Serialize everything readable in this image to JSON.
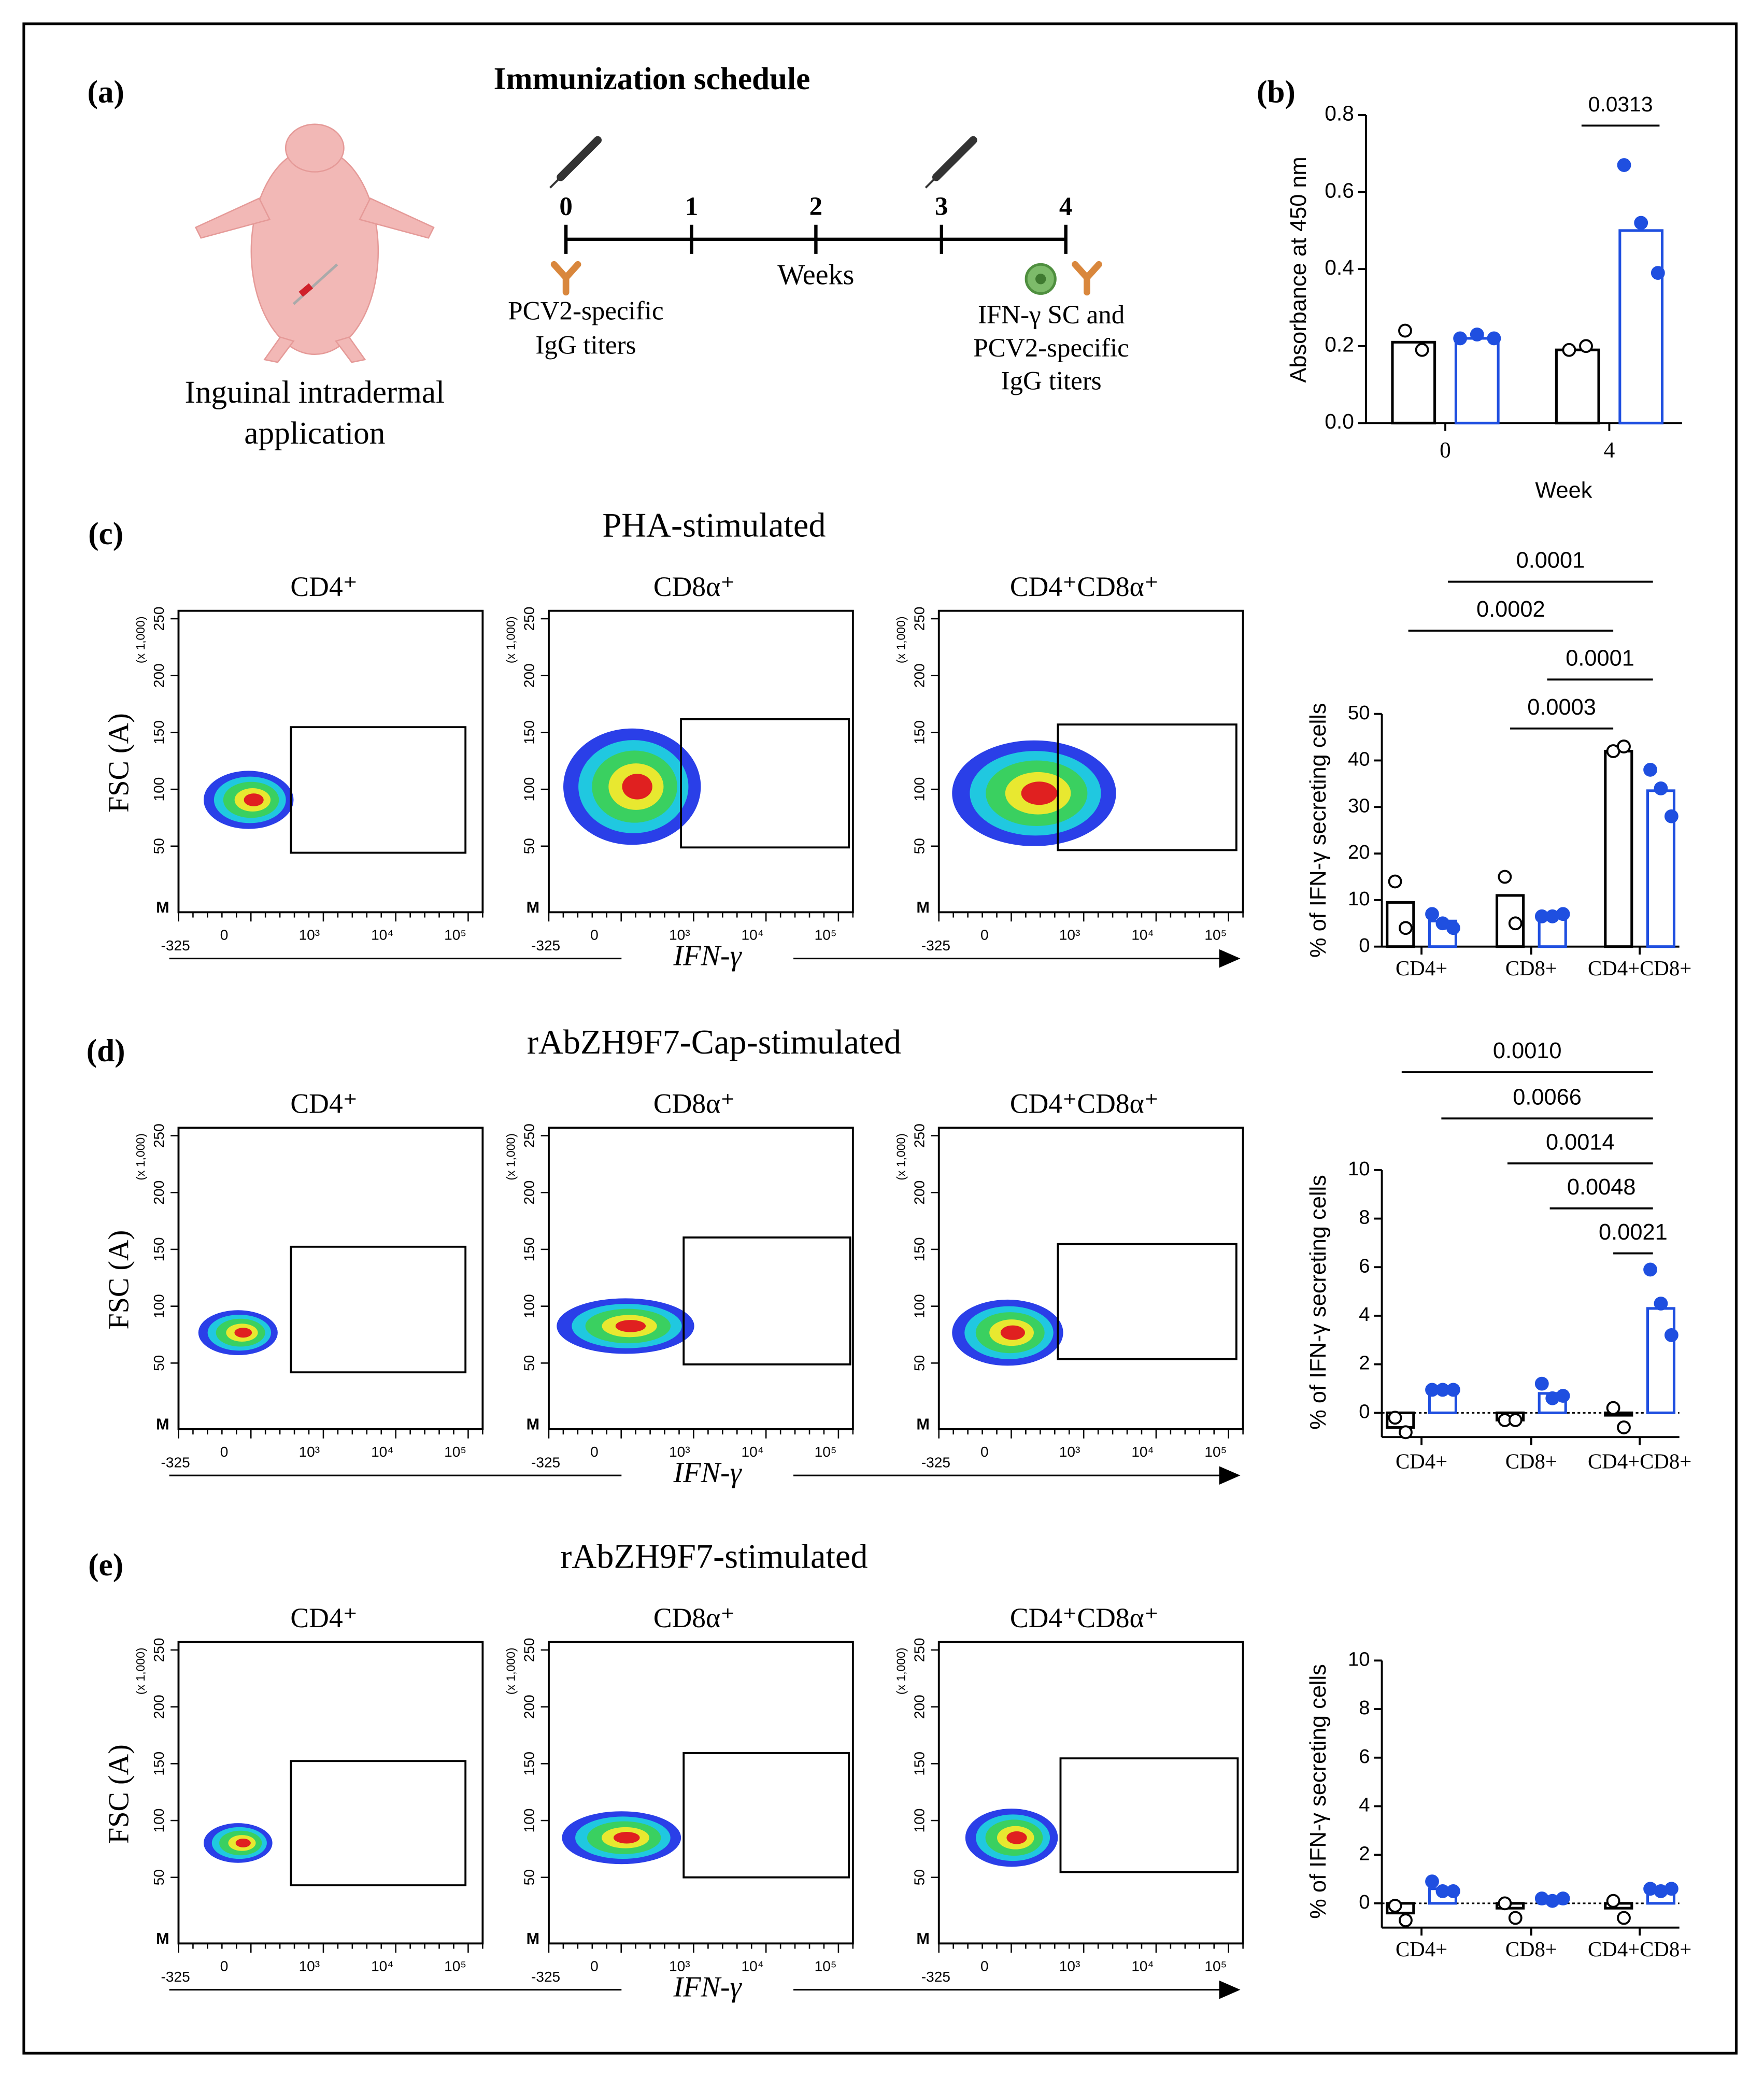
{
  "schedule": {
    "label": "(a)",
    "title": "Immunization schedule",
    "weeks": [
      "0",
      "1",
      "2",
      "3",
      "4"
    ],
    "axis_label": "Weeks",
    "left_label": [
      "PCV2-specific",
      "IgG titers"
    ],
    "right_label": [
      "IFN-γ SC and",
      "PCV2-specific",
      "IgG titers"
    ],
    "caption": [
      "Inguinal intradermal",
      "application"
    ]
  },
  "chart_data": [
    {
      "type": "bar",
      "label": "(b)",
      "ylabel": "Absorbance at 450 nm",
      "xlabel": "Week",
      "categories": [
        "0",
        "4"
      ],
      "ylim": [
        0,
        0.8
      ],
      "yticks": [
        {
          "value": 0,
          "label": "0.0"
        },
        {
          "value": 0.2,
          "label": "0.2"
        },
        {
          "value": 0.4,
          "label": "0.4"
        },
        {
          "value": 0.6,
          "label": "0.6"
        },
        {
          "value": 0.8,
          "label": "0.8"
        }
      ],
      "series": [
        {
          "color": "#000000",
          "values": [
            0.21,
            0.19
          ],
          "points": [
            [
              0.24,
              0.19
            ],
            [
              0.19,
              0.2
            ]
          ]
        },
        {
          "color": "#1f4fe0",
          "values": [
            0.22,
            0.5
          ],
          "points": [
            [
              0.22,
              0.23,
              0.22
            ],
            [
              0.67,
              0.52,
              0.39
            ]
          ]
        }
      ],
      "annotations": [
        "0.0313"
      ],
      "zero_line": false
    },
    {
      "type": "bar",
      "ylabel": "% of IFN-γ secreting cells",
      "categories": [
        "CD4+",
        "CD8+",
        "CD4+CD8+"
      ],
      "ylim": [
        0,
        50
      ],
      "yticks": [
        0,
        10,
        20,
        30,
        40,
        50
      ],
      "series": [
        {
          "color": "#000000",
          "values": [
            9.5,
            11,
            42
          ],
          "points": [
            [
              14,
              4
            ],
            [
              15,
              5
            ],
            [
              42,
              43
            ]
          ]
        },
        {
          "color": "#1f4fe0",
          "values": [
            5.5,
            6.5,
            33.5
          ],
          "points": [
            [
              7,
              5,
              4
            ],
            [
              6.5,
              6.5,
              7
            ],
            [
              38,
              34,
              28
            ]
          ]
        }
      ],
      "annotations": [
        "0.0001",
        "0.0002",
        "0.0001",
        "0.0003"
      ],
      "zero_line": false
    },
    {
      "type": "bar",
      "ylabel": "% of IFN-γ secreting cells",
      "categories": [
        "CD4+",
        "CD8+",
        "CD4+CD8+"
      ],
      "ylim": [
        -1,
        10
      ],
      "yticks": [
        0,
        2,
        4,
        6,
        8,
        10
      ],
      "series": [
        {
          "color": "#000000",
          "values": [
            -0.6,
            -0.3,
            -0.1
          ],
          "points": [
            [
              -0.2,
              -0.8
            ],
            [
              -0.3,
              -0.3
            ],
            [
              0.2,
              -0.6
            ]
          ]
        },
        {
          "color": "#1f4fe0",
          "values": [
            0.9,
            0.8,
            4.3
          ],
          "points": [
            [
              0.95,
              0.95,
              0.95
            ],
            [
              1.2,
              0.6,
              0.7
            ],
            [
              5.9,
              4.5,
              3.2
            ]
          ]
        }
      ],
      "annotations": [
        "0.0010",
        "0.0066",
        "0.0014",
        "0.0048",
        "0.0021"
      ],
      "zero_line": true
    },
    {
      "type": "bar",
      "ylabel": "% of IFN-γ secreting cells",
      "categories": [
        "CD4+",
        "CD8+",
        "CD4+CD8+"
      ],
      "ylim": [
        -1,
        10
      ],
      "yticks": [
        0,
        2,
        4,
        6,
        8,
        10
      ],
      "series": [
        {
          "color": "#000000",
          "values": [
            -0.4,
            -0.2,
            -0.2
          ],
          "points": [
            [
              -0.1,
              -0.7
            ],
            [
              0,
              -0.6
            ],
            [
              0.1,
              -0.6
            ]
          ]
        },
        {
          "color": "#1f4fe0",
          "values": [
            0.6,
            0.15,
            0.45
          ],
          "points": [
            [
              0.9,
              0.5,
              0.5
            ],
            [
              0.2,
              0.1,
              0.2
            ],
            [
              0.6,
              0.5,
              0.6
            ]
          ]
        }
      ],
      "annotations": [],
      "zero_line": true
    }
  ],
  "flow": [
    {
      "label": "(c)",
      "title": "PHA-stimulated",
      "plots": [
        "CD4⁺",
        "CD8α⁺",
        "CD4⁺CD8α⁺"
      ],
      "y_label": "FSC (A)",
      "x_label": "IFN-γ",
      "y_unit": "(x 1,000)",
      "yticks": [
        50,
        100,
        150,
        200,
        250
      ],
      "xticks": [
        "-325",
        "0",
        "10³",
        "10⁴",
        "10⁵"
      ],
      "corner_mark": "M"
    },
    {
      "label": "(d)",
      "title": "rAbZH9F7-Cap-stimulated",
      "plots": [
        "CD4⁺",
        "CD8α⁺",
        "CD4⁺CD8α⁺"
      ],
      "y_label": "FSC (A)",
      "x_label": "IFN-γ",
      "y_unit": "(x 1,000)",
      "yticks": [
        50,
        100,
        150,
        200,
        250
      ],
      "xticks": [
        "-325",
        "0",
        "10³",
        "10⁴",
        "10⁵"
      ],
      "corner_mark": "M"
    },
    {
      "label": "(e)",
      "title": "rAbZH9F7-stimulated",
      "plots": [
        "CD4⁺",
        "CD8α⁺",
        "CD4⁺CD8α⁺"
      ],
      "y_label": "FSC (A)",
      "x_label": "IFN-γ",
      "y_unit": "(x 1,000)",
      "yticks": [
        50,
        100,
        150,
        200,
        250
      ],
      "xticks": [
        "-325",
        "0",
        "10³",
        "10⁴",
        "10⁵"
      ],
      "corner_mark": "M"
    }
  ]
}
